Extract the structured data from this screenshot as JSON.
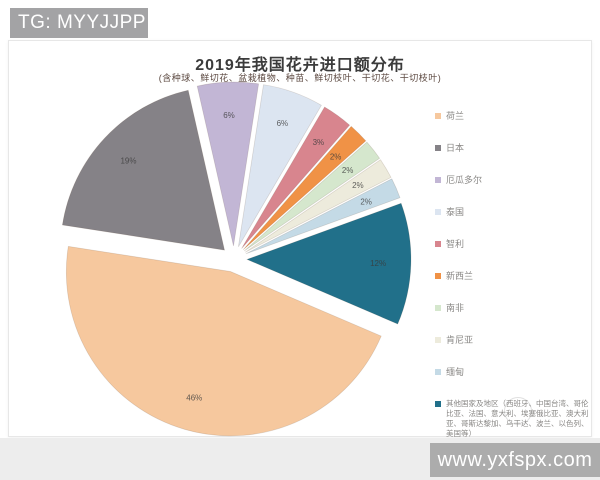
{
  "banner": {
    "text": "TG: MYYJJPP"
  },
  "watermark": {
    "text": "www.yxfspx.com"
  },
  "chart_data": {
    "type": "pie",
    "title": "2019年我国花卉进口额分布",
    "subtitle": "(含种球、鲜切花、盆栽植物、种苗、鲜切枝叶、干切花、干切枝叶)",
    "legend_position": "right",
    "start_angle_deg": 113.2,
    "direction": "clockwise",
    "exploded": true,
    "series": [
      {
        "id": "netherlands",
        "name": "荷兰",
        "value": 46,
        "label": "46%",
        "color": "#F6C89E"
      },
      {
        "id": "japan",
        "name": "日本",
        "value": 19,
        "label": "19%",
        "color": "#858287"
      },
      {
        "id": "ecuador",
        "name": "厄瓜多尔",
        "value": 6,
        "label": "6%",
        "color": "#C2B6D5"
      },
      {
        "id": "thailand",
        "name": "泰国",
        "value": 6,
        "label": "6%",
        "color": "#DCE5F1"
      },
      {
        "id": "chile",
        "name": "智利",
        "value": 3,
        "label": "3%",
        "color": "#D8858E"
      },
      {
        "id": "new-zealand",
        "name": "新西兰",
        "value": 2,
        "label": "2%",
        "color": "#F09246"
      },
      {
        "id": "south-africa",
        "name": "南非",
        "value": 2,
        "label": "2%",
        "color": "#D5E7CD"
      },
      {
        "id": "kenya",
        "name": "肯尼亚",
        "value": 2,
        "label": "2%",
        "color": "#EDEBDC"
      },
      {
        "id": "myanmar",
        "name": "缅甸",
        "value": 2,
        "label": "2%",
        "color": "#C4DAE6"
      },
      {
        "id": "others",
        "name": "其他国家及地区（西班牙、中国台湾、哥伦比亚、法国、意大利、埃塞俄比亚、澳大利亚、哥斯达黎加、乌干达、波兰、以色列、美国等）",
        "value": 12,
        "label": "12%",
        "color": "#21708A"
      }
    ]
  }
}
